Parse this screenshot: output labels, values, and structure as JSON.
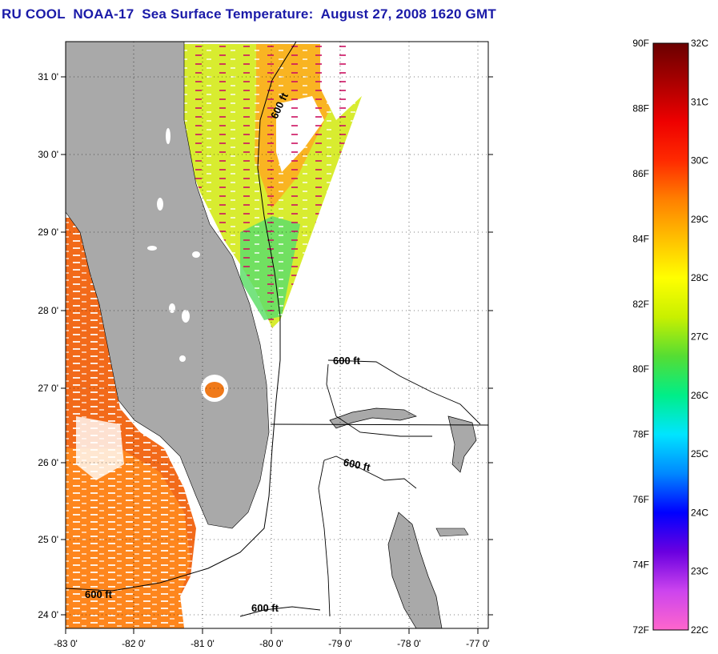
{
  "title": "RU COOL  NOAA-17  Sea Surface Temperature:  August 27, 2008 1620 GMT",
  "map": {
    "lat_labels": [
      "31 0'",
      "30 0'",
      "29 0'",
      "28 0'",
      "27 0'",
      "26 0'",
      "25 0'",
      "24 0'"
    ],
    "lon_labels": [
      "-83 0'",
      "-82 0'",
      "-81 0'",
      "-80 0'",
      "-79 0'",
      "-78 0'",
      "-77 0'"
    ],
    "lat_range": [
      23.9,
      31.4
    ],
    "lon_range": [
      -83,
      -76.85
    ],
    "isobath_labels": [
      "600 ft",
      "600 ft",
      "600 ft",
      "600 ft",
      "600 ft"
    ],
    "colors": {
      "land": "#a9a9a9",
      "water_nodata": "#ffffff",
      "isobath": "#000000",
      "grid": "#000000"
    }
  },
  "colorbar": {
    "f_labels": [
      "90F",
      "88F",
      "86F",
      "84F",
      "82F",
      "80F",
      "78F",
      "76F",
      "74F",
      "72F"
    ],
    "c_labels": [
      "32C",
      "31C",
      "30C",
      "29C",
      "28C",
      "27C",
      "26C",
      "25C",
      "24C",
      "23C",
      "22C"
    ],
    "range_c": [
      22,
      32
    ],
    "range_f": [
      72,
      90
    ],
    "stops": [
      "#ff66cc",
      "#cc44ee",
      "#6a00e0",
      "#0000ff",
      "#0088ff",
      "#00e5ff",
      "#00ee88",
      "#55dd33",
      "#c8f000",
      "#ffff00",
      "#ffc000",
      "#ff8000",
      "#ff2a00",
      "#ee0000",
      "#aa0000",
      "#6a0000"
    ]
  }
}
